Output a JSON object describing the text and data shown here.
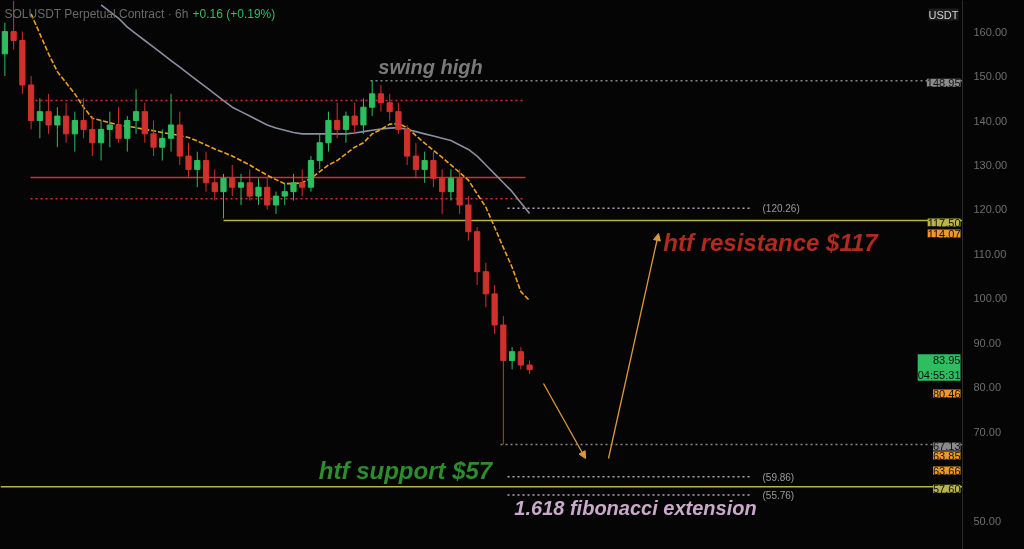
{
  "chart_data": {
    "type": "candlestick",
    "title": "SOLUSDT Perpetual Contract · 6h",
    "subtitle": "+0.16 (+0.19%)",
    "ylabel": "USDT",
    "categories": [
      null,
      null,
      null,
      null,
      null,
      null,
      null,
      null,
      null,
      null,
      null,
      null,
      null,
      null,
      null,
      null,
      null,
      null,
      null,
      null,
      null,
      null,
      null,
      null,
      null,
      null,
      null,
      null,
      null,
      null,
      null,
      null,
      null,
      null,
      null,
      null,
      null,
      null,
      null,
      null,
      null,
      null,
      null,
      null,
      null,
      null,
      null,
      null,
      null,
      null,
      null,
      null,
      null,
      null,
      null,
      null,
      null,
      null,
      null,
      null,
      null,
      null,
      null,
      null,
      null,
      null,
      null,
      null,
      null,
      null,
      null,
      null,
      null,
      null,
      null,
      null,
      null,
      null,
      null,
      null,
      null,
      null,
      null,
      null,
      null,
      null,
      null,
      null,
      null,
      null,
      null,
      null,
      null,
      null,
      null,
      null,
      null,
      null,
      null,
      null,
      null,
      null,
      null,
      null,
      null,
      null,
      null,
      null,
      null,
      null
    ],
    "ohlc": [
      [
        155,
        162,
        150,
        160
      ],
      [
        160,
        167,
        156,
        158
      ],
      [
        158,
        160,
        146,
        148
      ],
      [
        148,
        150,
        138,
        140
      ],
      [
        140,
        145,
        136,
        142
      ],
      [
        142,
        146,
        137,
        139
      ],
      [
        139,
        143,
        134,
        141
      ],
      [
        141,
        144,
        135,
        137
      ],
      [
        137,
        142,
        133,
        140
      ],
      [
        140,
        145,
        136,
        138
      ],
      [
        138,
        141,
        132,
        135
      ],
      [
        135,
        140,
        131,
        138
      ],
      [
        138,
        142,
        134,
        139
      ],
      [
        139,
        143,
        135,
        136
      ],
      [
        136,
        141,
        133,
        140
      ],
      [
        140,
        147,
        137,
        142
      ],
      [
        142,
        144,
        135,
        137
      ],
      [
        137,
        140,
        132,
        134
      ],
      [
        134,
        138,
        131,
        136
      ],
      [
        136,
        146,
        133,
        139
      ],
      [
        139,
        142,
        130,
        132
      ],
      [
        132,
        135,
        127,
        129
      ],
      [
        129,
        133,
        125,
        131
      ],
      [
        131,
        133,
        124,
        126
      ],
      [
        126,
        129,
        122,
        124
      ],
      [
        124,
        128,
        118,
        127
      ],
      [
        127,
        130,
        123,
        125
      ],
      [
        125,
        128,
        121,
        126
      ],
      [
        126,
        129,
        122,
        123
      ],
      [
        123,
        127,
        121,
        125
      ],
      [
        125,
        127,
        120,
        121
      ],
      [
        121,
        124,
        119,
        123
      ],
      [
        123,
        126,
        121,
        124
      ],
      [
        124,
        128,
        122,
        126
      ],
      [
        126,
        129,
        123,
        125
      ],
      [
        125,
        132,
        124,
        131
      ],
      [
        131,
        137,
        129,
        135
      ],
      [
        135,
        142,
        133,
        140
      ],
      [
        140,
        144,
        136,
        138
      ],
      [
        138,
        142,
        135,
        141
      ],
      [
        141,
        144,
        137,
        139
      ],
      [
        139,
        145,
        137,
        143
      ],
      [
        143,
        149,
        141,
        146
      ],
      [
        146,
        148,
        142,
        144
      ],
      [
        144,
        146,
        140,
        142
      ],
      [
        142,
        144,
        137,
        138
      ],
      [
        138,
        139,
        130,
        132
      ],
      [
        132,
        135,
        127,
        129
      ],
      [
        129,
        133,
        126,
        131
      ],
      [
        131,
        133,
        125,
        127
      ],
      [
        127,
        129,
        119,
        124
      ],
      [
        124,
        129,
        122,
        127
      ],
      [
        127,
        129,
        119,
        121
      ],
      [
        121,
        123,
        113,
        115
      ],
      [
        115,
        116,
        103,
        106
      ],
      [
        106,
        108,
        98,
        101
      ],
      [
        101,
        103,
        92,
        94
      ],
      [
        94,
        96,
        67.13,
        86
      ],
      [
        86,
        89,
        84,
        88
      ],
      [
        88,
        89,
        84,
        85
      ],
      [
        85,
        86,
        83,
        83.95
      ],
      null,
      null,
      null,
      null,
      null,
      null,
      null,
      null,
      null,
      null,
      null,
      null,
      null,
      null,
      null,
      null,
      null,
      null,
      null,
      null,
      null,
      null,
      null,
      null,
      null,
      null,
      null,
      null,
      null,
      null,
      null,
      null,
      null,
      null,
      null,
      null,
      null,
      null,
      null,
      null,
      null,
      null,
      null,
      null,
      null,
      null,
      null,
      null,
      null
    ],
    "ylim": [
      43.5,
      167
    ],
    "yticks": [
      {
        "value": 50,
        "label": "50.00"
      },
      {
        "value": 70,
        "label": "70.00"
      },
      {
        "value": 80,
        "label": "80.00"
      },
      {
        "value": 90,
        "label": "90.00"
      },
      {
        "value": 100,
        "label": "100.00"
      },
      {
        "value": 110,
        "label": "110.00"
      },
      {
        "value": 120,
        "label": "120.00"
      },
      {
        "value": 130,
        "label": "130.00"
      },
      {
        "value": 140,
        "label": "140.00"
      },
      {
        "value": 150,
        "label": "150.00"
      },
      {
        "value": 160,
        "label": "160.00"
      }
    ],
    "tick_labels": "y",
    "series": [
      {
        "type": "line",
        "color": "#8a8fa0",
        "line_style": "solid",
        "values": [
          null,
          null,
          null,
          null,
          null,
          null,
          null,
          null,
          null,
          null,
          null,
          166,
          164.5,
          163,
          161,
          159.5,
          158,
          156.5,
          155,
          153.5,
          152,
          150.5,
          149,
          147.5,
          146,
          144.5,
          143,
          142,
          141,
          140,
          139,
          138.3,
          137.8,
          137.3,
          137,
          137,
          137,
          137,
          137,
          137,
          137.2,
          137.5,
          137.8,
          138.1,
          138.3,
          138.4,
          138,
          137.5,
          137,
          136.5,
          136,
          135.5,
          134.5,
          133.5,
          132,
          130,
          128,
          126,
          124,
          121.5,
          119.1,
          null,
          null,
          null,
          null,
          null,
          null,
          null,
          null,
          null,
          null,
          null,
          null,
          null,
          null,
          null,
          null,
          null,
          null,
          null,
          null,
          null,
          null,
          null,
          null,
          null,
          null,
          null,
          null,
          null,
          null,
          null,
          null,
          null,
          null,
          null,
          null,
          null,
          null,
          null,
          null,
          null,
          null,
          null,
          null,
          null,
          null,
          null,
          null,
          null
        ]
      },
      {
        "type": "line",
        "color": "#f0a020",
        "line_style": "dashed",
        "values": [
          null,
          null,
          null,
          164,
          159.5,
          155,
          151,
          148.5,
          146,
          143,
          140.5,
          140,
          139.5,
          139,
          138.7,
          138.4,
          138,
          137.7,
          137.3,
          137,
          136.6,
          136.2,
          135.4,
          134.5,
          133.6,
          132.8,
          132,
          131,
          130,
          128.8,
          127.7,
          126.7,
          125.8,
          125.8,
          126,
          127,
          128.5,
          130,
          131,
          132.5,
          134,
          135,
          137,
          138,
          139.2,
          139.3,
          138.4,
          136.6,
          134.9,
          133.3,
          131.7,
          130,
          128.3,
          126.6,
          123.5,
          120.5,
          116,
          111.4,
          107,
          101.5,
          99.5,
          null,
          null,
          null,
          null,
          null,
          null,
          null,
          null,
          null,
          null,
          null,
          null,
          null,
          null,
          null,
          null,
          null,
          null,
          null,
          null,
          null,
          null,
          null,
          null,
          null,
          null,
          null,
          null,
          null,
          null,
          null,
          null,
          null,
          null,
          null,
          null,
          null,
          null,
          null,
          null,
          null,
          null,
          null,
          null,
          null,
          null,
          null,
          null,
          null
        ]
      }
    ],
    "ref_lines": [
      {
        "axis": "y",
        "value": 148.95,
        "label": "148.95",
        "color": "#8a8a8a",
        "line_style": "dotted"
      },
      {
        "axis": "y",
        "value": 117.5,
        "label": "117.50",
        "color": "#b8b44a",
        "line_style": "solid"
      },
      {
        "axis": "y",
        "value": 67.13,
        "label": "67.13",
        "color": "#8a8a8a",
        "line_style": "dotted"
      },
      {
        "axis": "y",
        "value": 57.6,
        "label": "57.60",
        "color": "#b8b44a",
        "line_style": "solid"
      },
      {
        "axis": "y",
        "value": 144.5,
        "color": "#d32f2f",
        "line_style": "dotted"
      },
      {
        "axis": "y",
        "value": 127.2,
        "color": "#d32f2f",
        "line_style": "solid"
      },
      {
        "axis": "y",
        "value": 122.4,
        "color": "#d32f2f",
        "line_style": "dotted"
      },
      {
        "axis": "y",
        "value": 120.26,
        "label": "(120.26)",
        "color": "#b9a3b9",
        "line_style": "dotted"
      },
      {
        "axis": "y",
        "value": 59.86,
        "label": "(59.86)",
        "color": "#b9a3b9",
        "line_style": "dotted"
      },
      {
        "axis": "y",
        "value": 55.76,
        "label": "(55.76)",
        "color": "#b9a3b9",
        "line_style": "dotted"
      }
    ],
    "annotations": [
      "swing high",
      "htf resistance $117",
      "htf support $57",
      "1.618 fibonacci extension",
      "114.07",
      "83.95\n04:55:31",
      "80.46",
      "63.85",
      "63.66"
    ]
  }
}
